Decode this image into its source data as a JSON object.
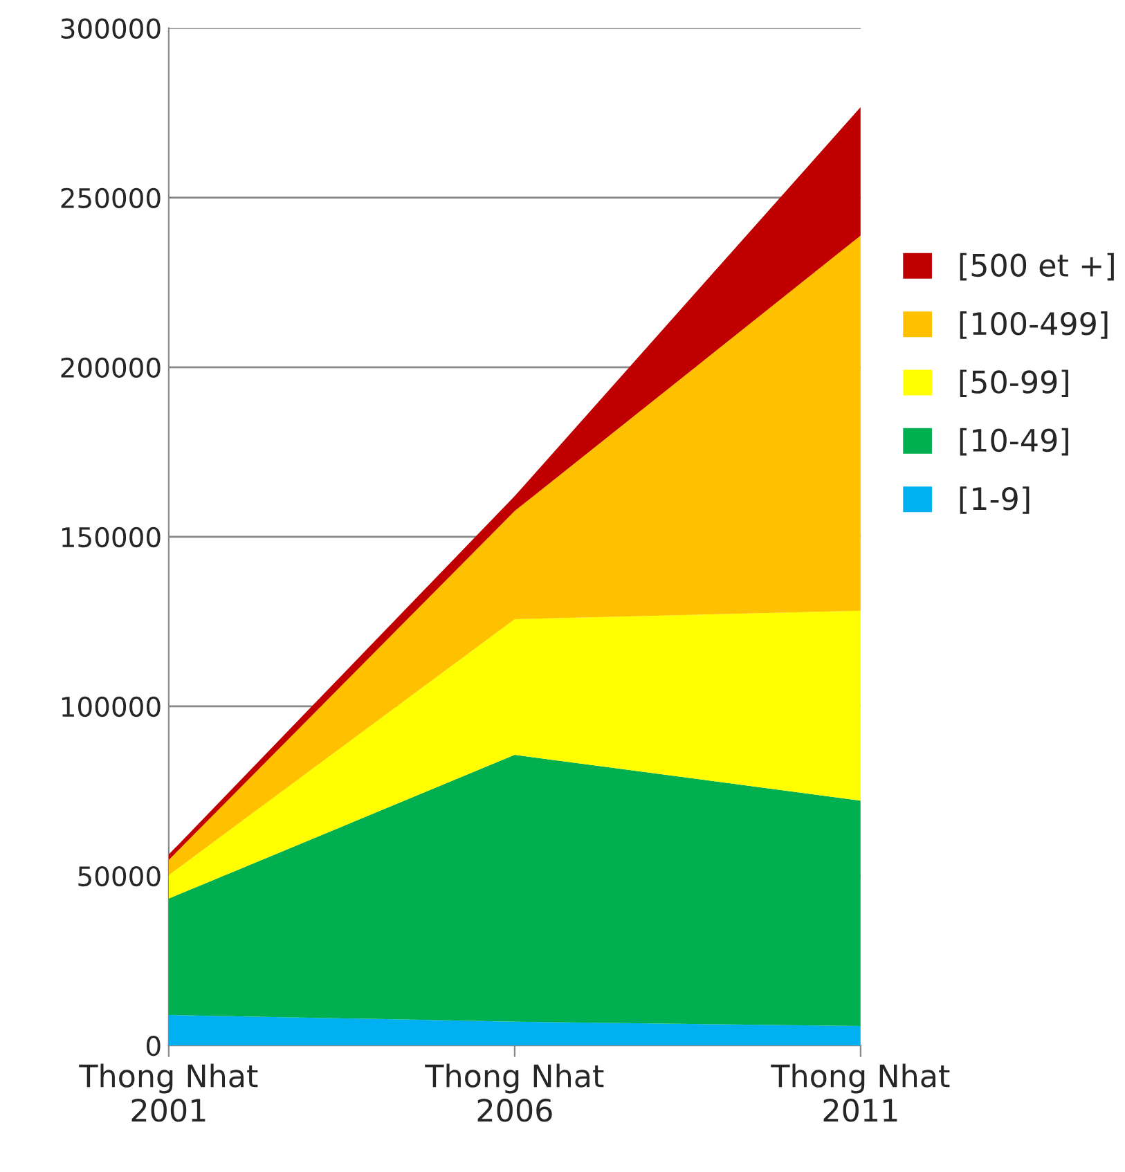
{
  "chart_data": {
    "type": "area",
    "stacked": true,
    "categories": [
      "Thong Nhat\n2001",
      "Thong Nhat\n2006",
      "Thong Nhat\n2011"
    ],
    "series": [
      {
        "name": "[1-9]",
        "color": "#00b0f0",
        "values": [
          9000,
          7000,
          5700
        ]
      },
      {
        "name": "[10-49]",
        "color": "#00b050",
        "values": [
          34300,
          78700,
          66500
        ]
      },
      {
        "name": "[50-99]",
        "color": "#ffff00",
        "values": [
          6900,
          40000,
          56000
        ]
      },
      {
        "name": "[100-499]",
        "color": "#ffc000",
        "values": [
          4500,
          31900,
          110600
        ]
      },
      {
        "name": "[500 et +]",
        "color": "#c00000",
        "values": [
          1600,
          4400,
          37900
        ]
      }
    ],
    "ylim": [
      0,
      300000
    ],
    "yticks": [
      0,
      50000,
      100000,
      150000,
      200000,
      250000,
      300000
    ],
    "grid": "y",
    "legend": "right"
  }
}
